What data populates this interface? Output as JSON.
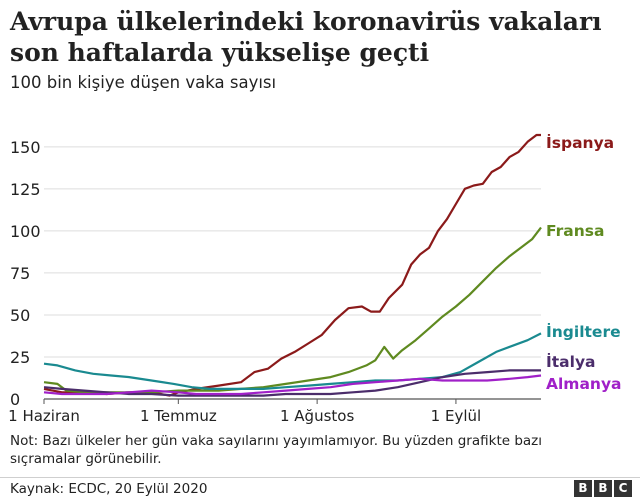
{
  "title": "Avrupa ülkelerindeki koronavirüs vakaları son haftalarda yükselişe geçti",
  "subtitle": "100 bin kişiye düşen vaka sayısı",
  "note": "Not: Bazı ülkeler her gün vaka sayılarını yayımlamıyor. Bu yüzden grafikte bazı sıçramalar görünebilir.",
  "source": "Kaynak: ECDC, 20 Eylül 2020",
  "logo": [
    "B",
    "B",
    "C"
  ],
  "chart_data": {
    "type": "line",
    "title": "Avrupa ülkelerindeki koronavirüs vakaları son haftalarda yükselişe geçti",
    "subtitle": "100 bin kişiye düşen vaka sayısı",
    "xlabel": "",
    "ylabel": "",
    "x_start": "2020-06-01",
    "x_end": "2020-09-20",
    "xticks": [
      {
        "date": "2020-06-01",
        "label": "1 Haziran"
      },
      {
        "date": "2020-07-01",
        "label": "1 Temmuz"
      },
      {
        "date": "2020-08-01",
        "label": "1 Ağustos"
      },
      {
        "date": "2020-09-01",
        "label": "1 Eylül"
      }
    ],
    "yticks": [
      0,
      25,
      50,
      75,
      100,
      125,
      150
    ],
    "ylim": [
      0,
      160
    ],
    "grid": true,
    "legend": "inline labels at line ends (right)",
    "series": [
      {
        "name": "İspanya",
        "color": "#8b1a1a",
        "points": [
          [
            "2020-06-01",
            6
          ],
          [
            "2020-06-05",
            4
          ],
          [
            "2020-06-10",
            4
          ],
          [
            "2020-06-15",
            3
          ],
          [
            "2020-06-20",
            4
          ],
          [
            "2020-06-25",
            4
          ],
          [
            "2020-06-29",
            2
          ],
          [
            "2020-07-01",
            4
          ],
          [
            "2020-07-05",
            6
          ],
          [
            "2020-07-10",
            8
          ],
          [
            "2020-07-15",
            10
          ],
          [
            "2020-07-18",
            16
          ],
          [
            "2020-07-21",
            18
          ],
          [
            "2020-07-24",
            24
          ],
          [
            "2020-07-27",
            28
          ],
          [
            "2020-07-30",
            33
          ],
          [
            "2020-08-02",
            38
          ],
          [
            "2020-08-05",
            47
          ],
          [
            "2020-08-08",
            54
          ],
          [
            "2020-08-11",
            55
          ],
          [
            "2020-08-13",
            52
          ],
          [
            "2020-08-15",
            52
          ],
          [
            "2020-08-17",
            60
          ],
          [
            "2020-08-20",
            68
          ],
          [
            "2020-08-22",
            80
          ],
          [
            "2020-08-24",
            86
          ],
          [
            "2020-08-26",
            90
          ],
          [
            "2020-08-28",
            100
          ],
          [
            "2020-08-30",
            107
          ],
          [
            "2020-09-01",
            116
          ],
          [
            "2020-09-03",
            125
          ],
          [
            "2020-09-05",
            127
          ],
          [
            "2020-09-07",
            128
          ],
          [
            "2020-09-09",
            135
          ],
          [
            "2020-09-11",
            138
          ],
          [
            "2020-09-13",
            144
          ],
          [
            "2020-09-15",
            147
          ],
          [
            "2020-09-17",
            153
          ],
          [
            "2020-09-19",
            157
          ],
          [
            "2020-09-20",
            157
          ]
        ]
      },
      {
        "name": "Fransa",
        "color": "#5f8a20",
        "points": [
          [
            "2020-06-01",
            10
          ],
          [
            "2020-06-04",
            9
          ],
          [
            "2020-06-06",
            5
          ],
          [
            "2020-06-10",
            4
          ],
          [
            "2020-06-15",
            4
          ],
          [
            "2020-06-20",
            4
          ],
          [
            "2020-06-25",
            4
          ],
          [
            "2020-07-01",
            5
          ],
          [
            "2020-07-05",
            5
          ],
          [
            "2020-07-10",
            5
          ],
          [
            "2020-07-15",
            6
          ],
          [
            "2020-07-20",
            7
          ],
          [
            "2020-07-25",
            9
          ],
          [
            "2020-07-30",
            11
          ],
          [
            "2020-08-04",
            13
          ],
          [
            "2020-08-08",
            16
          ],
          [
            "2020-08-12",
            20
          ],
          [
            "2020-08-14",
            23
          ],
          [
            "2020-08-16",
            31
          ],
          [
            "2020-08-18",
            24
          ],
          [
            "2020-08-20",
            29
          ],
          [
            "2020-08-23",
            35
          ],
          [
            "2020-08-26",
            42
          ],
          [
            "2020-08-29",
            49
          ],
          [
            "2020-09-01",
            55
          ],
          [
            "2020-09-04",
            62
          ],
          [
            "2020-09-07",
            70
          ],
          [
            "2020-09-10",
            78
          ],
          [
            "2020-09-13",
            85
          ],
          [
            "2020-09-16",
            91
          ],
          [
            "2020-09-18",
            95
          ],
          [
            "2020-09-20",
            102
          ]
        ]
      },
      {
        "name": "İngiltere",
        "color": "#1a8a90",
        "points": [
          [
            "2020-06-01",
            21
          ],
          [
            "2020-06-04",
            20
          ],
          [
            "2020-06-08",
            17
          ],
          [
            "2020-06-12",
            15
          ],
          [
            "2020-06-16",
            14
          ],
          [
            "2020-06-20",
            13
          ],
          [
            "2020-06-25",
            11
          ],
          [
            "2020-06-30",
            9
          ],
          [
            "2020-07-04",
            7
          ],
          [
            "2020-07-08",
            6
          ],
          [
            "2020-07-12",
            6
          ],
          [
            "2020-07-16",
            6
          ],
          [
            "2020-07-20",
            6
          ],
          [
            "2020-07-25",
            7
          ],
          [
            "2020-07-30",
            8
          ],
          [
            "2020-08-04",
            9
          ],
          [
            "2020-08-09",
            10
          ],
          [
            "2020-08-14",
            11
          ],
          [
            "2020-08-19",
            11
          ],
          [
            "2020-08-24",
            12
          ],
          [
            "2020-08-29",
            13
          ],
          [
            "2020-09-02",
            16
          ],
          [
            "2020-09-06",
            22
          ],
          [
            "2020-09-10",
            28
          ],
          [
            "2020-09-14",
            32
          ],
          [
            "2020-09-17",
            35
          ],
          [
            "2020-09-20",
            39
          ]
        ]
      },
      {
        "name": "İtalya",
        "color": "#4b2d6b",
        "points": [
          [
            "2020-06-01",
            7
          ],
          [
            "2020-06-05",
            6
          ],
          [
            "2020-06-10",
            5
          ],
          [
            "2020-06-15",
            4
          ],
          [
            "2020-06-20",
            3
          ],
          [
            "2020-06-25",
            3
          ],
          [
            "2020-07-01",
            2
          ],
          [
            "2020-07-05",
            2
          ],
          [
            "2020-07-10",
            2
          ],
          [
            "2020-07-15",
            2
          ],
          [
            "2020-07-20",
            2
          ],
          [
            "2020-07-25",
            3
          ],
          [
            "2020-07-30",
            3
          ],
          [
            "2020-08-04",
            3
          ],
          [
            "2020-08-09",
            4
          ],
          [
            "2020-08-14",
            5
          ],
          [
            "2020-08-19",
            7
          ],
          [
            "2020-08-24",
            10
          ],
          [
            "2020-08-29",
            13
          ],
          [
            "2020-09-03",
            15
          ],
          [
            "2020-09-08",
            16
          ],
          [
            "2020-09-13",
            17
          ],
          [
            "2020-09-17",
            17
          ],
          [
            "2020-09-20",
            17
          ]
        ]
      },
      {
        "name": "Almanya",
        "color": "#a020c8",
        "points": [
          [
            "2020-06-01",
            4
          ],
          [
            "2020-06-05",
            3
          ],
          [
            "2020-06-10",
            3
          ],
          [
            "2020-06-15",
            3
          ],
          [
            "2020-06-20",
            4
          ],
          [
            "2020-06-25",
            5
          ],
          [
            "2020-07-01",
            4
          ],
          [
            "2020-07-05",
            3
          ],
          [
            "2020-07-10",
            3
          ],
          [
            "2020-07-15",
            3
          ],
          [
            "2020-07-20",
            4
          ],
          [
            "2020-07-25",
            5
          ],
          [
            "2020-07-30",
            6
          ],
          [
            "2020-08-04",
            7
          ],
          [
            "2020-08-09",
            9
          ],
          [
            "2020-08-14",
            10
          ],
          [
            "2020-08-19",
            11
          ],
          [
            "2020-08-24",
            12
          ],
          [
            "2020-08-29",
            11
          ],
          [
            "2020-09-03",
            11
          ],
          [
            "2020-09-08",
            11
          ],
          [
            "2020-09-13",
            12
          ],
          [
            "2020-09-17",
            13
          ],
          [
            "2020-09-20",
            14
          ]
        ]
      }
    ]
  }
}
